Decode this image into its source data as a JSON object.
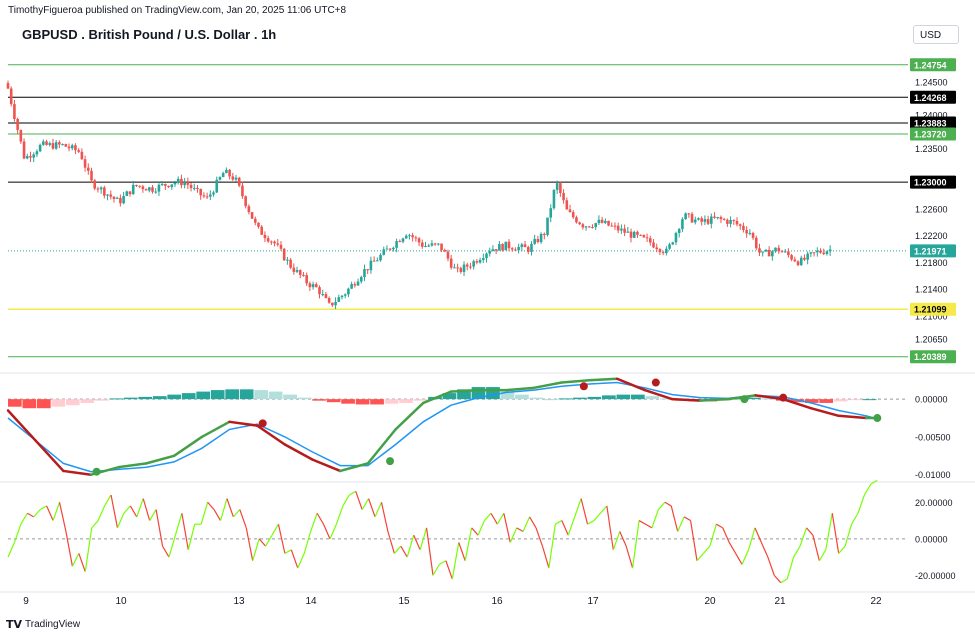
{
  "header": {
    "attribution": "TimothyFigueroa published on TradingView.com, Jan 20, 2025 11:06 UTC+8",
    "title": "GBPUSD . British Pound / U.S. Dollar . 1h",
    "currency": "USD"
  },
  "footer": {
    "brand": "TradingView",
    "logo_icon": "tradingview-logo-icon"
  },
  "colors": {
    "up": "#26a69a",
    "down": "#ef5350",
    "green_line": "#4caf50",
    "black_line": "#000000",
    "yellow_line": "#f5e94c",
    "macd_line": "#2196f3",
    "signal_up": "#43a047",
    "signal_down": "#b71c1c",
    "rsi_up": "#76ff03",
    "rsi_down": "#f44336"
  },
  "chart_data": [
    {
      "type": "candlestick",
      "title": "GBPUSD . British Pound / U.S. Dollar . 1h",
      "x_ticks": [
        "9",
        "10",
        "13",
        "14",
        "15",
        "16",
        "17",
        "20",
        "21",
        "22"
      ],
      "y_ticks": [
        "1.24500",
        "1.24000",
        "1.23500",
        "1.22600",
        "1.22200",
        "1.21800",
        "1.21400",
        "1.21000",
        "1.20650"
      ],
      "ylim": [
        1.2022,
        1.2502
      ],
      "current_price": 1.21971,
      "horizontal_levels": [
        {
          "price": 1.24754,
          "label": "1.24754",
          "style": "green"
        },
        {
          "price": 1.24268,
          "label": "1.24268",
          "style": "black"
        },
        {
          "price": 1.23883,
          "label": "1.23883",
          "style": "black"
        },
        {
          "price": 1.2372,
          "label": "1.23720",
          "style": "green"
        },
        {
          "price": 1.23,
          "label": "1.23000",
          "style": "black"
        },
        {
          "price": 1.21971,
          "label": "1.21971",
          "style": "current"
        },
        {
          "price": 1.21099,
          "label": "1.21099",
          "style": "yellow"
        },
        {
          "price": 1.20389,
          "label": "1.20389",
          "style": "green"
        }
      ],
      "close_path": [
        [
          0,
          1.244
        ],
        [
          0.3,
          1.2335
        ],
        [
          0.6,
          1.2355
        ],
        [
          1.0,
          1.2355
        ],
        [
          1.3,
          1.2345
        ],
        [
          1.5,
          1.23
        ],
        [
          2.0,
          1.227
        ],
        [
          2.3,
          1.2295
        ],
        [
          2.6,
          1.229
        ],
        [
          3.0,
          1.23
        ],
        [
          3.2,
          1.23
        ],
        [
          3.4,
          1.2285
        ],
        [
          3.6,
          1.2275
        ],
        [
          3.9,
          1.2315
        ],
        [
          4.1,
          1.2305
        ],
        [
          4.5,
          1.223
        ],
        [
          4.8,
          1.221
        ],
        [
          5.1,
          1.2175
        ],
        [
          5.4,
          1.215
        ],
        [
          5.6,
          1.214
        ],
        [
          5.8,
          1.2115
        ],
        [
          6.1,
          1.2135
        ],
        [
          6.4,
          1.2165
        ],
        [
          6.8,
          1.2195
        ],
        [
          7.2,
          1.2225
        ],
        [
          7.5,
          1.2205
        ],
        [
          7.8,
          1.2205
        ],
        [
          8.1,
          1.2165
        ],
        [
          8.4,
          1.218
        ],
        [
          8.7,
          1.22
        ],
        [
          9.0,
          1.2205
        ],
        [
          9.4,
          1.22
        ],
        [
          9.7,
          1.2225
        ],
        [
          9.9,
          1.23
        ],
        [
          10.1,
          1.2255
        ],
        [
          10.4,
          1.2235
        ],
        [
          10.7,
          1.224
        ],
        [
          11.0,
          1.223
        ],
        [
          11.3,
          1.222
        ],
        [
          11.6,
          1.221
        ],
        [
          11.9,
          1.2195
        ],
        [
          12.2,
          1.225
        ],
        [
          12.5,
          1.224
        ],
        [
          12.8,
          1.2245
        ],
        [
          13.1,
          1.224
        ],
        [
          13.4,
          1.2225
        ],
        [
          13.6,
          1.219
        ],
        [
          13.9,
          1.22
        ],
        [
          14.1,
          1.219
        ],
        [
          14.3,
          1.218
        ],
        [
          14.6,
          1.2195
        ],
        [
          14.9,
          1.22
        ]
      ]
    },
    {
      "type": "macd",
      "y_ticks": [
        "0.00000",
        "-0.00500",
        "-0.01000"
      ],
      "ylim": [
        -0.0107,
        0.0028
      ],
      "histogram": [
        -0.001,
        -0.0012,
        -0.0012,
        -0.001,
        -0.0008,
        -0.0005,
        -0.0002,
        0.0001,
        0.0002,
        0.0003,
        0.0004,
        0.0006,
        0.0008,
        0.001,
        0.0012,
        0.0013,
        0.0013,
        0.0012,
        0.001,
        0.0006,
        0.0002,
        -0.0002,
        -0.0004,
        -0.0006,
        -0.0007,
        -0.0007,
        -0.0006,
        -0.0005,
        -0.0002,
        0.0003,
        0.0008,
        0.0013,
        0.0016,
        0.0016,
        0.0012,
        0.0006,
        0.0002,
        0.0,
        0.0001,
        0.0002,
        0.0003,
        0.0005,
        0.0006,
        0.0006,
        0.0004,
        0.0001,
        -0.0002,
        -0.0003,
        -0.0003,
        -0.0002,
        0.0001,
        0.0002,
        0.0001,
        -0.0002,
        -0.0004,
        -0.0005,
        -0.0005,
        -0.0003,
        -0.0001,
        0.0
      ],
      "macd": [
        [
          0,
          -0.0025
        ],
        [
          0.5,
          -0.0055
        ],
        [
          1.0,
          -0.0085
        ],
        [
          1.5,
          -0.0096
        ],
        [
          2.0,
          -0.0093
        ],
        [
          2.5,
          -0.009
        ],
        [
          3.0,
          -0.0083
        ],
        [
          3.5,
          -0.0065
        ],
        [
          4.0,
          -0.004
        ],
        [
          4.5,
          -0.0033
        ],
        [
          5.0,
          -0.005
        ],
        [
          5.5,
          -0.007
        ],
        [
          6.0,
          -0.0088
        ],
        [
          6.5,
          -0.0088
        ],
        [
          7.0,
          -0.006
        ],
        [
          7.5,
          -0.003
        ],
        [
          8.0,
          -0.0008
        ],
        [
          8.5,
          0.0002
        ],
        [
          9.0,
          0.0009
        ],
        [
          9.5,
          0.0012
        ],
        [
          10.0,
          0.0017
        ],
        [
          10.5,
          0.002
        ],
        [
          11.0,
          0.0022
        ],
        [
          11.5,
          0.0015
        ],
        [
          12.0,
          0.0006
        ],
        [
          12.5,
          0.0002
        ],
        [
          13.0,
          0.0001
        ],
        [
          13.5,
          0.0005
        ],
        [
          14.0,
          0.0003
        ],
        [
          14.5,
          -0.0005
        ],
        [
          15.0,
          -0.0015
        ],
        [
          15.5,
          -0.0022
        ],
        [
          15.7,
          -0.0026
        ]
      ],
      "signal": [
        [
          0,
          -0.0015
        ],
        [
          0.5,
          -0.0055
        ],
        [
          1.0,
          -0.0095
        ],
        [
          1.5,
          -0.01
        ],
        [
          2.0,
          -0.009
        ],
        [
          2.5,
          -0.0085
        ],
        [
          3.0,
          -0.0075
        ],
        [
          3.5,
          -0.005
        ],
        [
          4.0,
          -0.003
        ],
        [
          4.5,
          -0.0035
        ],
        [
          5.0,
          -0.006
        ],
        [
          5.5,
          -0.008
        ],
        [
          6.0,
          -0.0095
        ],
        [
          6.5,
          -0.0085
        ],
        [
          7.0,
          -0.004
        ],
        [
          7.5,
          -0.0005
        ],
        [
          8.0,
          0.001
        ],
        [
          8.5,
          0.0012
        ],
        [
          9.0,
          0.0012
        ],
        [
          9.5,
          0.0015
        ],
        [
          10.0,
          0.0022
        ],
        [
          10.5,
          0.0025
        ],
        [
          11.0,
          0.0027
        ],
        [
          11.5,
          0.0012
        ],
        [
          12.0,
          0.0
        ],
        [
          12.5,
          -0.0002
        ],
        [
          13.0,
          0.0
        ],
        [
          13.5,
          0.0005
        ],
        [
          14.0,
          0.0
        ],
        [
          14.5,
          -0.0012
        ],
        [
          15.0,
          -0.0022
        ],
        [
          15.5,
          -0.0025
        ],
        [
          15.7,
          -0.0025
        ]
      ],
      "cross_markers": [
        {
          "x": 1.6,
          "y": -0.0096,
          "dir": "up"
        },
        {
          "x": 4.6,
          "y": -0.0032,
          "dir": "down"
        },
        {
          "x": 6.9,
          "y": -0.0082,
          "dir": "up"
        },
        {
          "x": 10.4,
          "y": 0.0017,
          "dir": "down"
        },
        {
          "x": 11.7,
          "y": 0.0022,
          "dir": "down"
        },
        {
          "x": 13.3,
          "y": 0.0,
          "dir": "up"
        },
        {
          "x": 14.0,
          "y": 0.0002,
          "dir": "down"
        },
        {
          "x": 15.7,
          "y": -0.0025,
          "dir": "up"
        }
      ]
    },
    {
      "type": "line",
      "y_ticks": [
        "20.00000",
        "0.00000",
        "-20.00000"
      ],
      "ylim": [
        -28,
        30
      ],
      "values": [
        -10,
        -2,
        8,
        14,
        12,
        16,
        18,
        10,
        20,
        4,
        -15,
        -8,
        -18,
        6,
        10,
        18,
        24,
        6,
        14,
        18,
        12,
        22,
        10,
        16,
        -4,
        -10,
        2,
        14,
        -6,
        8,
        8,
        20,
        16,
        10,
        22,
        12,
        16,
        6,
        -12,
        0,
        -4,
        2,
        8,
        -8,
        -6,
        -16,
        -8,
        4,
        14,
        8,
        0,
        8,
        18,
        24,
        26,
        16,
        22,
        12,
        20,
        4,
        -8,
        -4,
        -10,
        2,
        -6,
        6,
        -20,
        -14,
        -12,
        -22,
        -2,
        -12,
        6,
        2,
        10,
        14,
        8,
        14,
        -2,
        6,
        4,
        12,
        6,
        -4,
        -16,
        8,
        10,
        2,
        12,
        22,
        8,
        10,
        14,
        18,
        -6,
        4,
        -4,
        -16,
        10,
        8,
        6,
        16,
        20,
        18,
        4,
        12,
        10,
        -12,
        -8,
        -4,
        8,
        6,
        -2,
        -8,
        -14,
        -6,
        6,
        -2,
        -10,
        -20,
        -24,
        -22,
        -10,
        -4,
        6,
        2,
        -12,
        -6,
        14,
        -8,
        -4,
        8,
        14,
        24,
        30,
        32
      ]
    }
  ]
}
